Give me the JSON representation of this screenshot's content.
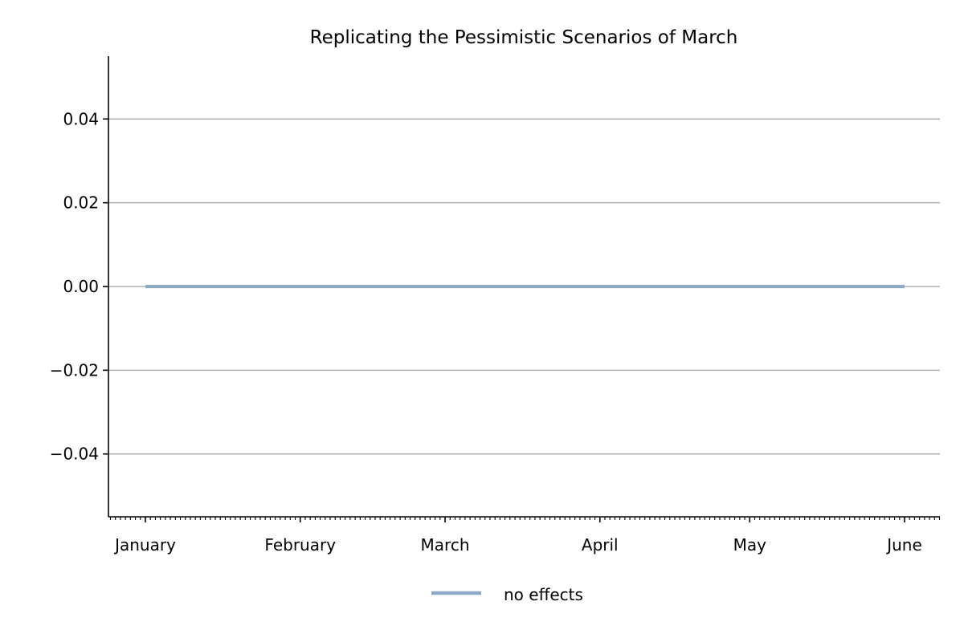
{
  "chart_data": {
    "type": "line",
    "title": "Replicating the Pessimistic Scenarios of March",
    "xlabel": "",
    "ylabel": "",
    "x_axis": {
      "type": "date",
      "range": [
        "2020-01-01",
        "2020-06-01"
      ],
      "month_ticks": [
        {
          "date": "2020-01-01",
          "label": "January"
        },
        {
          "date": "2020-02-01",
          "label": "February"
        },
        {
          "date": "2020-03-01",
          "label": "March"
        },
        {
          "date": "2020-04-01",
          "label": "April"
        },
        {
          "date": "2020-05-01",
          "label": "May"
        },
        {
          "date": "2020-06-01",
          "label": "June"
        }
      ],
      "minor_ticks": "daily"
    },
    "y_axis": {
      "ylim": [
        -0.055,
        0.055
      ],
      "ticks": [
        {
          "value": 0.04,
          "label": "0.04"
        },
        {
          "value": 0.02,
          "label": "0.02"
        },
        {
          "value": 0.0,
          "label": "0.00"
        },
        {
          "value": -0.02,
          "label": "−0.02"
        },
        {
          "value": -0.04,
          "label": "−0.04"
        }
      ]
    },
    "grid": {
      "y": true,
      "x": false
    },
    "legend": {
      "placement": "bottom-center"
    },
    "series": [
      {
        "name": "no effects",
        "color": "#8eaac6",
        "x": [
          "2020-01-01",
          "2020-06-01"
        ],
        "values": [
          0.0,
          0.0
        ]
      }
    ]
  }
}
